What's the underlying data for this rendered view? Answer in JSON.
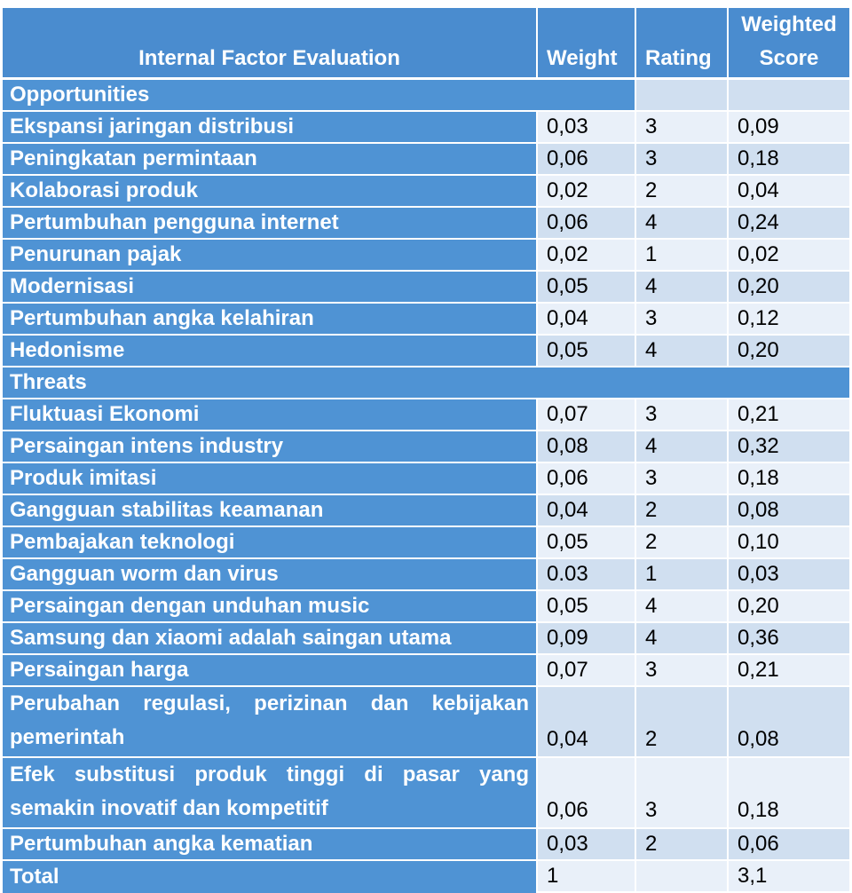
{
  "header": {
    "factor": "Internal Factor Evaluation",
    "weight": "Weight",
    "rating": "Rating",
    "score": "Weighted Score"
  },
  "section_opportunities": "Opportunities",
  "opportunities": [
    {
      "name": "Ekspansi jaringan distribusi",
      "weight": "0,03",
      "rating": "3",
      "score": "0,09"
    },
    {
      "name": "Peningkatan permintaan",
      "weight": "0,06",
      "rating": "3",
      "score": "0,18"
    },
    {
      "name": "Kolaborasi produk",
      "weight": "0,02",
      "rating": "2",
      "score": "0,04"
    },
    {
      "name": "Pertumbuhan pengguna internet",
      "weight": "0,06",
      "rating": "4",
      "score": "0,24"
    },
    {
      "name": "Penurunan pajak",
      "weight": "0,02",
      "rating": "1",
      "score": "0,02"
    },
    {
      "name": "Modernisasi",
      "weight": "0,05",
      "rating": "4",
      "score": "0,20"
    },
    {
      "name": "Pertumbuhan angka kelahiran",
      "weight": "0,04",
      "rating": "3",
      "score": "0,12"
    },
    {
      "name": "Hedonisme",
      "weight": "0,05",
      "rating": "4",
      "score": "0,20"
    }
  ],
  "section_threats": "Threats",
  "threats": [
    {
      "name": "Fluktuasi Ekonomi",
      "weight": "0,07",
      "rating": "3",
      "score": "0,21"
    },
    {
      "name": "Persaingan intens industry",
      "weight": "0,08",
      "rating": "4",
      "score": "0,32"
    },
    {
      "name": "Produk imitasi",
      "weight": "0,06",
      "rating": "3",
      "score": "0,18"
    },
    {
      "name": "Gangguan stabilitas keamanan",
      "weight": "0,04",
      "rating": "2",
      "score": "0,08"
    },
    {
      "name": "Pembajakan teknologi",
      "weight": "0,05",
      "rating": "2",
      "score": "0,10"
    },
    {
      "name": "Gangguan worm dan virus",
      "weight": "0.03",
      "rating": "1",
      "score": "0,03"
    },
    {
      "name": "Persaingan dengan unduhan music",
      "weight": "0,05",
      "rating": "4",
      "score": "0,20"
    },
    {
      "name": "Samsung dan xiaomi adalah saingan utama",
      "weight": "0,09",
      "rating": "4",
      "score": "0,36"
    },
    {
      "name": "Persaingan harga",
      "weight": "0,07",
      "rating": "3",
      "score": "0,21"
    },
    {
      "name": "Perubahan regulasi, perizinan dan kebijakan pemerintah",
      "weight": "0,04",
      "rating": "2",
      "score": "0,08"
    },
    {
      "name": "Efek substitusi produk tinggi di pasar yang semakin inovatif dan kompetitif",
      "weight": "0,06",
      "rating": "3",
      "score": "0,18"
    },
    {
      "name": "Pertumbuhan angka kematian",
      "weight": "0,03",
      "rating": "2",
      "score": "0,06"
    }
  ],
  "total": {
    "label": "Total",
    "weight": "1",
    "rating": "",
    "score": "3,1"
  }
}
